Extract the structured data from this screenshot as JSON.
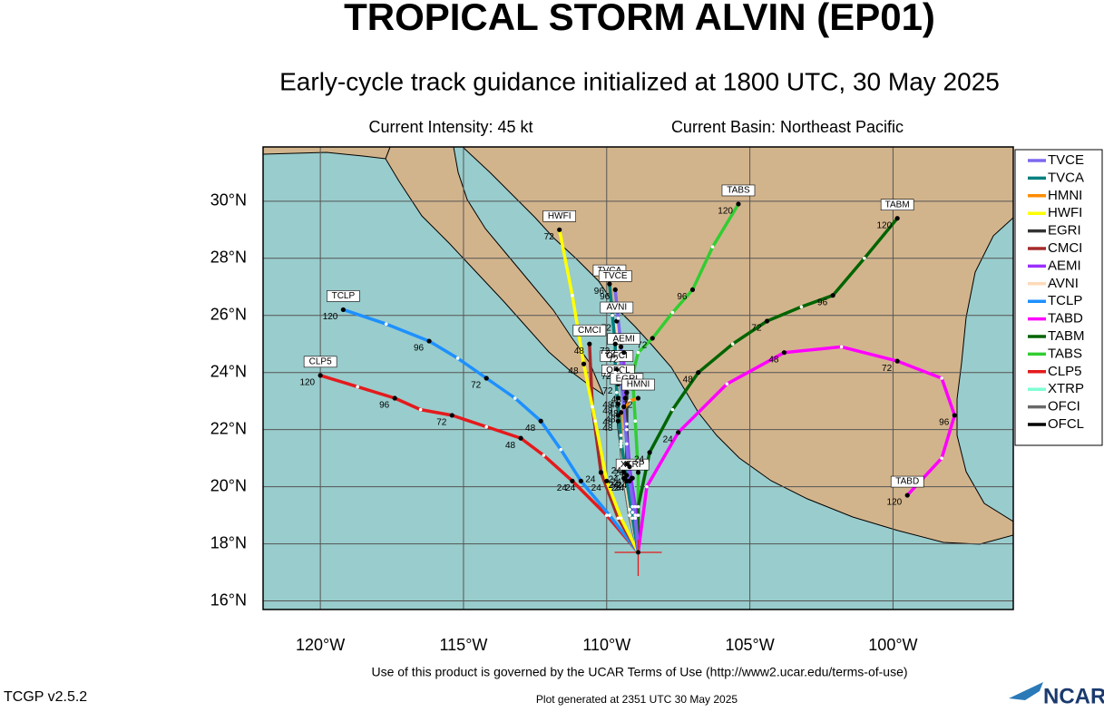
{
  "chart_data": {
    "type": "track",
    "title": "TROPICAL STORM ALVIN (EP01)",
    "subtitle": "Early-cycle track guidance initialized at 1800 UTC, 30 May 2025",
    "intensity": "Current Intensity: 45 kt",
    "basin": "Current Basin: Northeast Pacific",
    "terms": "Use of this product is governed by the UCAR Terms of Use (http://www2.ucar.edu/terms-of-use)",
    "version": "TCGP v2.5.2",
    "generated": "Plot generated at 2351 UTC  30 May 2025",
    "logo": "NCAR",
    "xlim": [
      -122,
      -95.8
    ],
    "ylim": [
      15.7,
      31.9
    ],
    "xticks": [
      {
        "value": -120,
        "label": "120°W"
      },
      {
        "value": -115,
        "label": "115°W"
      },
      {
        "value": -110,
        "label": "110°W"
      },
      {
        "value": -105,
        "label": "105°W"
      },
      {
        "value": -100,
        "label": "100°W"
      }
    ],
    "yticks": [
      {
        "value": 16,
        "label": "16°N"
      },
      {
        "value": 18,
        "label": "18°N"
      },
      {
        "value": 20,
        "label": "20°N"
      },
      {
        "value": 22,
        "label": "22°N"
      },
      {
        "value": 24,
        "label": "24°N"
      },
      {
        "value": 26,
        "label": "26°N"
      },
      {
        "value": 28,
        "label": "28°N"
      },
      {
        "value": 30,
        "label": "30°N"
      }
    ],
    "grid": true,
    "series": [
      {
        "name": "TVCE",
        "color": "#7b68ee",
        "hours": [
          0,
          12,
          24,
          36,
          48,
          60,
          72,
          84,
          96
        ],
        "x": [
          -108.9,
          -109.0,
          -109.2,
          -109.3,
          -109.4,
          -109.5,
          -109.5,
          -109.6,
          -109.7
        ],
        "values": [
          17.7,
          18.9,
          20.2,
          21.5,
          22.8,
          23.9,
          24.9,
          25.9,
          26.9
        ]
      },
      {
        "name": "TVCA",
        "color": "#008080",
        "hours": [
          0,
          12,
          24,
          36,
          48,
          60,
          72,
          84,
          96
        ],
        "x": [
          -108.9,
          -109.1,
          -109.3,
          -109.5,
          -109.6,
          -109.7,
          -109.7,
          -109.8,
          -109.9
        ],
        "values": [
          17.7,
          18.9,
          20.2,
          21.6,
          22.9,
          24.0,
          25.0,
          26.0,
          27.1
        ]
      },
      {
        "name": "HMNI",
        "color": "#ff8c00",
        "hours": [
          0,
          12,
          24,
          36,
          48,
          60,
          72
        ],
        "x": [
          -108.9,
          -109.1,
          -109.3,
          -109.5,
          -109.5,
          -109.2,
          -108.9
        ],
        "values": [
          17.7,
          19.1,
          20.4,
          21.5,
          22.6,
          23.0,
          23.1
        ]
      },
      {
        "name": "HWFI",
        "color": "#ffff00",
        "hours": [
          0,
          12,
          24,
          36,
          48,
          60,
          72
        ],
        "x": [
          -108.9,
          -109.5,
          -110.0,
          -110.4,
          -110.8,
          -111.2,
          -111.65
        ],
        "values": [
          17.7,
          18.9,
          20.2,
          22.3,
          24.3,
          26.7,
          29.0
        ]
      },
      {
        "name": "EGRI",
        "color": "#333333",
        "hours": [
          0,
          12,
          24,
          36,
          48
        ],
        "x": [
          -108.9,
          -109.1,
          -109.3,
          -109.3,
          -109.3
        ],
        "values": [
          17.7,
          19.3,
          20.8,
          22.2,
          23.3
        ]
      },
      {
        "name": "CMCI",
        "color": "#a52a2a",
        "hours": [
          0,
          12,
          24,
          36,
          48
        ],
        "x": [
          -108.9,
          -109.6,
          -110.2,
          -110.5,
          -110.6
        ],
        "values": [
          17.7,
          18.9,
          20.5,
          22.8,
          25.0
        ]
      },
      {
        "name": "AEMI",
        "color": "#9b30ff",
        "hours": [
          0,
          12,
          24,
          36,
          48,
          60,
          72
        ],
        "x": [
          -108.9,
          -109.0,
          -109.2,
          -109.3,
          -109.35,
          -109.4,
          -109.4
        ],
        "values": [
          17.7,
          19.3,
          20.7,
          22.0,
          23.1,
          24.0,
          24.7
        ]
      },
      {
        "name": "AVNI",
        "color": "#ffdab9",
        "hours": [
          0,
          12,
          24,
          36,
          48,
          60,
          72
        ],
        "x": [
          -108.9,
          -109.2,
          -109.4,
          -109.5,
          -109.6,
          -109.65,
          -109.65
        ],
        "values": [
          17.7,
          19.2,
          20.5,
          21.8,
          23.1,
          24.4,
          25.8
        ]
      },
      {
        "name": "TCLP",
        "color": "#1e90ff",
        "hours": [
          0,
          12,
          24,
          36,
          48,
          60,
          72,
          84,
          96,
          108,
          120
        ],
        "x": [
          -108.9,
          -109.9,
          -110.9,
          -111.6,
          -112.3,
          -113.2,
          -114.2,
          -115.2,
          -116.2,
          -117.7,
          -119.2
        ],
        "values": [
          17.7,
          19.0,
          20.2,
          21.3,
          22.3,
          23.1,
          23.8,
          24.5,
          25.1,
          25.7,
          26.2
        ]
      },
      {
        "name": "TABD",
        "color": "#ff00ff",
        "hours": [
          0,
          12,
          24,
          36,
          48,
          60,
          72,
          84,
          96,
          108,
          120
        ],
        "x": [
          -108.9,
          -108.6,
          -107.5,
          -105.8,
          -103.8,
          -101.8,
          -99.85,
          -98.3,
          -97.85,
          -98.3,
          -99.5
        ],
        "values": [
          17.7,
          20.0,
          21.9,
          23.6,
          24.7,
          24.9,
          24.4,
          23.8,
          22.5,
          21.0,
          19.7
        ]
      },
      {
        "name": "TABM",
        "color": "#006400",
        "hours": [
          0,
          12,
          24,
          36,
          48,
          60,
          72,
          84,
          96,
          108,
          120
        ],
        "x": [
          -108.9,
          -108.9,
          -108.5,
          -107.7,
          -106.8,
          -105.6,
          -104.4,
          -103.2,
          -102.1,
          -101.0,
          -99.85
        ],
        "values": [
          17.7,
          19.3,
          21.2,
          22.7,
          24.0,
          25.0,
          25.8,
          26.3,
          26.7,
          28.0,
          29.4
        ]
      },
      {
        "name": "TABS",
        "color": "#32cd32",
        "hours": [
          0,
          12,
          24,
          36,
          48,
          60,
          72,
          84,
          96,
          108,
          120
        ],
        "x": [
          -108.9,
          -108.9,
          -108.9,
          -109.0,
          -109.1,
          -108.9,
          -108.4,
          -107.7,
          -107.0,
          -106.3,
          -105.4
        ],
        "values": [
          17.7,
          19.0,
          20.5,
          22.3,
          23.9,
          24.7,
          25.2,
          26.1,
          26.9,
          28.4,
          29.9
        ]
      },
      {
        "name": "CLP5",
        "color": "#e41a1c",
        "hours": [
          0,
          12,
          24,
          36,
          48,
          60,
          72,
          84,
          96,
          108,
          120
        ],
        "x": [
          -108.9,
          -110.0,
          -111.2,
          -112.2,
          -113.0,
          -114.2,
          -115.4,
          -116.5,
          -117.4,
          -118.7,
          -120.0
        ],
        "values": [
          17.7,
          19.0,
          20.2,
          21.1,
          21.7,
          22.1,
          22.5,
          22.7,
          23.1,
          23.5,
          23.9
        ]
      },
      {
        "name": "XTRP",
        "color": "#7fffd4",
        "hours": [
          0,
          12,
          24
        ],
        "x": [
          -108.9,
          -109.0,
          -109.1
        ],
        "values": [
          17.7,
          19.0,
          20.3
        ]
      },
      {
        "name": "OFCI",
        "color": "#696969",
        "hours": [
          0,
          12,
          24,
          36,
          48,
          60,
          72
        ],
        "x": [
          -108.9,
          -109.2,
          -109.4,
          -109.5,
          -109.6,
          -109.65,
          -109.65
        ],
        "values": [
          17.7,
          19.0,
          20.3,
          21.5,
          22.5,
          23.3,
          24.1
        ]
      },
      {
        "name": "OFCL",
        "color": "#000000",
        "hours": [
          0,
          12,
          24,
          36,
          48,
          60,
          72
        ],
        "x": [
          -108.9,
          -109.2,
          -109.4,
          -109.5,
          -109.6,
          -109.6,
          -109.6
        ],
        "values": [
          17.7,
          19.0,
          20.3,
          21.4,
          22.3,
          23.0,
          23.6
        ]
      }
    ]
  }
}
